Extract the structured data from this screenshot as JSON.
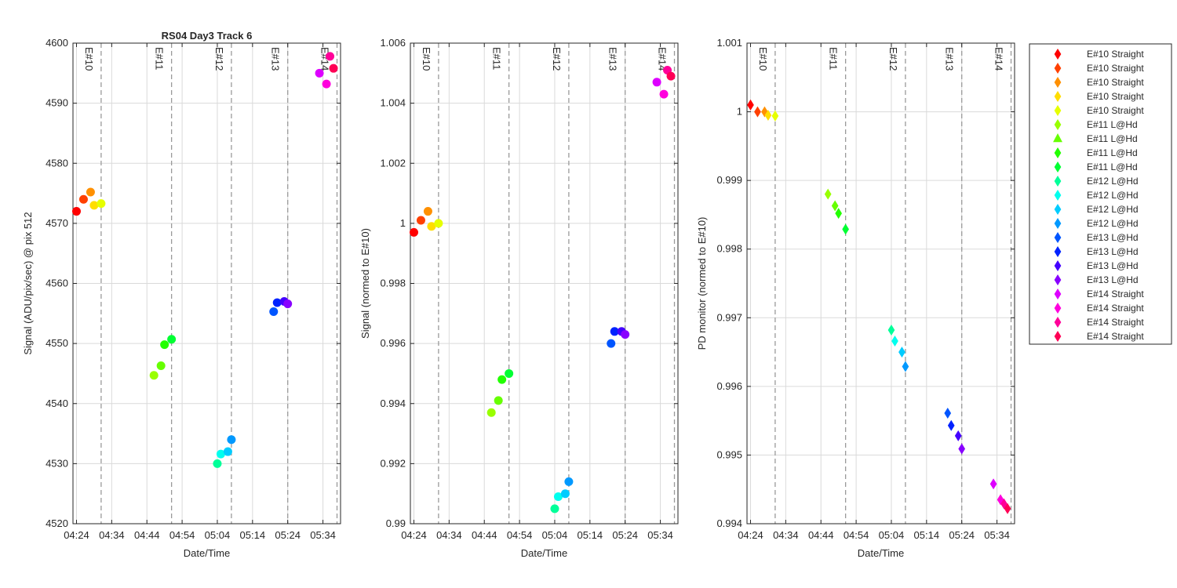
{
  "chart_data": [
    {
      "type": "scatter",
      "title": "RS04 Day3 Track 6",
      "xlabel": "Date/Time",
      "ylabel": "Signal (ADU/pix/sec) @ pix 512",
      "ylim": [
        4520,
        4600
      ],
      "yticks": [
        4520,
        4530,
        4540,
        4550,
        4560,
        4570,
        4580,
        4590,
        4600
      ],
      "ytick_labels": [
        "4520",
        "4530",
        "4540",
        "4550",
        "4560",
        "4570",
        "4580",
        "4590",
        "4600"
      ],
      "xlim": [
        "04:23",
        "05:39"
      ],
      "xticks": [
        "04:24",
        "04:34",
        "04:44",
        "04:54",
        "05:04",
        "05:14",
        "05:24",
        "05:34"
      ],
      "grid": true,
      "markers": "circle",
      "event_lines": [
        {
          "label": "E#10",
          "time": "04:31"
        },
        {
          "label": "E#11",
          "time": "04:51"
        },
        {
          "label": "E#12",
          "time": "05:08"
        },
        {
          "label": "E#13",
          "time": "05:24"
        },
        {
          "label": "E#14",
          "time": "05:38"
        }
      ],
      "points": [
        {
          "x": "04:24",
          "y": 4572.0,
          "color": "#ff0000"
        },
        {
          "x": "04:26",
          "y": 4574.0,
          "color": "#ff4000"
        },
        {
          "x": "04:28",
          "y": 4575.2,
          "color": "#ff9000"
        },
        {
          "x": "04:29",
          "y": 4573.0,
          "color": "#ffdd00"
        },
        {
          "x": "04:31",
          "y": 4573.3,
          "color": "#e6ff00"
        },
        {
          "x": "04:46",
          "y": 4544.7,
          "color": "#99ff00"
        },
        {
          "x": "04:48",
          "y": 4546.3,
          "color": "#66ff00"
        },
        {
          "x": "04:49",
          "y": 4549.8,
          "color": "#22ff00"
        },
        {
          "x": "04:51",
          "y": 4550.7,
          "color": "#00ff33"
        },
        {
          "x": "05:04",
          "y": 4530.0,
          "color": "#00ff99"
        },
        {
          "x": "05:05",
          "y": 4531.6,
          "color": "#00ffee"
        },
        {
          "x": "05:07",
          "y": 4532.0,
          "color": "#00ccff"
        },
        {
          "x": "05:08",
          "y": 4534.0,
          "color": "#0099ff"
        },
        {
          "x": "05:20",
          "y": 4555.3,
          "color": "#0055ff"
        },
        {
          "x": "05:21",
          "y": 4556.8,
          "color": "#0022ff"
        },
        {
          "x": "05:23",
          "y": 4557.0,
          "color": "#4400ff"
        },
        {
          "x": "05:24",
          "y": 4556.6,
          "color": "#8800ff"
        },
        {
          "x": "05:33",
          "y": 4595.0,
          "color": "#dd00ff"
        },
        {
          "x": "05:35",
          "y": 4593.2,
          "color": "#ff00dd"
        },
        {
          "x": "05:36",
          "y": 4597.8,
          "color": "#ff0099"
        },
        {
          "x": "05:37",
          "y": 4595.8,
          "color": "#ff0055"
        }
      ]
    },
    {
      "type": "scatter",
      "title": "",
      "xlabel": "Date/Time",
      "ylabel": "Signal (normed to E#10)",
      "ylim": [
        0.99,
        1.006
      ],
      "yticks": [
        0.99,
        0.992,
        0.994,
        0.996,
        0.998,
        1,
        1.002,
        1.004,
        1.006
      ],
      "ytick_labels": [
        "0.99",
        "0.992",
        "0.994",
        "0.996",
        "0.998",
        "1",
        "1.002",
        "1.004",
        "1.006"
      ],
      "xlim": [
        "04:23",
        "05:39"
      ],
      "xticks": [
        "04:24",
        "04:34",
        "04:44",
        "04:54",
        "05:04",
        "05:14",
        "05:24",
        "05:34"
      ],
      "grid": true,
      "markers": "circle",
      "event_lines": [
        {
          "label": "E#10",
          "time": "04:31"
        },
        {
          "label": "E#11",
          "time": "04:51"
        },
        {
          "label": "E#12",
          "time": "05:08"
        },
        {
          "label": "E#13",
          "time": "05:24"
        },
        {
          "label": "E#14",
          "time": "05:38"
        }
      ],
      "points": [
        {
          "x": "04:24",
          "y": 0.9997,
          "color": "#ff0000"
        },
        {
          "x": "04:26",
          "y": 1.0001,
          "color": "#ff4000"
        },
        {
          "x": "04:28",
          "y": 1.0004,
          "color": "#ff9000"
        },
        {
          "x": "04:29",
          "y": 0.9999,
          "color": "#ffdd00"
        },
        {
          "x": "04:31",
          "y": 1.0,
          "color": "#e6ff00"
        },
        {
          "x": "04:46",
          "y": 0.9937,
          "color": "#99ff00"
        },
        {
          "x": "04:48",
          "y": 0.9941,
          "color": "#66ff00"
        },
        {
          "x": "04:49",
          "y": 0.9948,
          "color": "#22ff00"
        },
        {
          "x": "04:51",
          "y": 0.995,
          "color": "#00ff33"
        },
        {
          "x": "05:04",
          "y": 0.9905,
          "color": "#00ff99"
        },
        {
          "x": "05:05",
          "y": 0.9909,
          "color": "#00ffee"
        },
        {
          "x": "05:07",
          "y": 0.991,
          "color": "#00ccff"
        },
        {
          "x": "05:08",
          "y": 0.9914,
          "color": "#0099ff"
        },
        {
          "x": "05:20",
          "y": 0.996,
          "color": "#0055ff"
        },
        {
          "x": "05:21",
          "y": 0.9964,
          "color": "#0022ff"
        },
        {
          "x": "05:23",
          "y": 0.9964,
          "color": "#4400ff"
        },
        {
          "x": "05:24",
          "y": 0.9963,
          "color": "#8800ff"
        },
        {
          "x": "05:33",
          "y": 1.0047,
          "color": "#dd00ff"
        },
        {
          "x": "05:35",
          "y": 1.0043,
          "color": "#ff00dd"
        },
        {
          "x": "05:36",
          "y": 1.0051,
          "color": "#ff0099"
        },
        {
          "x": "05:37",
          "y": 1.0049,
          "color": "#ff0055"
        }
      ]
    },
    {
      "type": "scatter",
      "title": "",
      "xlabel": "Date/Time",
      "ylabel": "PD monitor (normed to E#10)",
      "ylim": [
        0.994,
        1.001
      ],
      "yticks": [
        0.994,
        0.995,
        0.996,
        0.997,
        0.998,
        0.999,
        1,
        1.001
      ],
      "ytick_labels": [
        "0.994",
        "0.995",
        "0.996",
        "0.997",
        "0.998",
        "0.999",
        "1",
        "1.001"
      ],
      "xlim": [
        "04:23",
        "05:39"
      ],
      "xticks": [
        "04:24",
        "04:34",
        "04:44",
        "04:54",
        "05:04",
        "05:14",
        "05:24",
        "05:34"
      ],
      "grid": true,
      "markers": "diamond",
      "event_lines": [
        {
          "label": "E#10",
          "time": "04:31"
        },
        {
          "label": "E#11",
          "time": "04:51"
        },
        {
          "label": "E#12",
          "time": "05:08"
        },
        {
          "label": "E#13",
          "time": "05:24"
        },
        {
          "label": "E#14",
          "time": "05:38"
        }
      ],
      "points": [
        {
          "x": "04:24",
          "y": 1.0001,
          "color": "#ff0000"
        },
        {
          "x": "04:26",
          "y": 1.0,
          "color": "#ff4000"
        },
        {
          "x": "04:28",
          "y": 1.0,
          "color": "#ff9000"
        },
        {
          "x": "04:29",
          "y": 0.99995,
          "color": "#ffdd00"
        },
        {
          "x": "04:31",
          "y": 0.99994,
          "color": "#e6ff00"
        },
        {
          "x": "04:46",
          "y": 0.9988,
          "color": "#99ff00"
        },
        {
          "x": "04:48",
          "y": 0.99863,
          "color": "#66ff00"
        },
        {
          "x": "04:49",
          "y": 0.99852,
          "color": "#22ff00"
        },
        {
          "x": "04:51",
          "y": 0.99829,
          "color": "#00ff33"
        },
        {
          "x": "05:04",
          "y": 0.99682,
          "color": "#00ff99"
        },
        {
          "x": "05:05",
          "y": 0.99666,
          "color": "#00ffee"
        },
        {
          "x": "05:07",
          "y": 0.9965,
          "color": "#00ccff"
        },
        {
          "x": "05:08",
          "y": 0.99629,
          "color": "#0099ff"
        },
        {
          "x": "05:20",
          "y": 0.99561,
          "color": "#0055ff"
        },
        {
          "x": "05:21",
          "y": 0.99543,
          "color": "#0022ff"
        },
        {
          "x": "05:23",
          "y": 0.99528,
          "color": "#4400ff"
        },
        {
          "x": "05:24",
          "y": 0.99509,
          "color": "#8800ff"
        },
        {
          "x": "05:33",
          "y": 0.99458,
          "color": "#dd00ff"
        },
        {
          "x": "05:35",
          "y": 0.99435,
          "color": "#ff00dd"
        },
        {
          "x": "05:36",
          "y": 0.99429,
          "color": "#ff0099"
        },
        {
          "x": "05:37",
          "y": 0.99422,
          "color": "#ff0055"
        }
      ]
    }
  ],
  "legend": {
    "placement": "right",
    "entries": [
      {
        "label": "E#10 Straight",
        "color": "#ff0000",
        "marker": "diamond"
      },
      {
        "label": "E#10 Straight",
        "color": "#ff4000",
        "marker": "diamond"
      },
      {
        "label": "E#10 Straight",
        "color": "#ff9000",
        "marker": "diamond"
      },
      {
        "label": "E#10 Straight",
        "color": "#ffdd00",
        "marker": "diamond"
      },
      {
        "label": "E#10 Straight",
        "color": "#e6ff00",
        "marker": "diamond"
      },
      {
        "label": "E#11 L@Hd",
        "color": "#99ff00",
        "marker": "diamond"
      },
      {
        "label": "E#11 L@Hd",
        "color": "#66ff00",
        "marker": "triangle"
      },
      {
        "label": "E#11 L@Hd",
        "color": "#22ff00",
        "marker": "diamond"
      },
      {
        "label": "E#11 L@Hd",
        "color": "#00ff33",
        "marker": "diamond"
      },
      {
        "label": "E#12 L@Hd",
        "color": "#00ff99",
        "marker": "diamond"
      },
      {
        "label": "E#12 L@Hd",
        "color": "#00ffee",
        "marker": "diamond"
      },
      {
        "label": "E#12 L@Hd",
        "color": "#00ccff",
        "marker": "diamond"
      },
      {
        "label": "E#12 L@Hd",
        "color": "#0099ff",
        "marker": "diamond"
      },
      {
        "label": "E#13 L@Hd",
        "color": "#0055ff",
        "marker": "diamond"
      },
      {
        "label": "E#13 L@Hd",
        "color": "#0022ff",
        "marker": "diamond"
      },
      {
        "label": "E#13 L@Hd",
        "color": "#4400ff",
        "marker": "diamond"
      },
      {
        "label": "E#13 L@Hd",
        "color": "#8800ff",
        "marker": "diamond"
      },
      {
        "label": "E#14 Straight",
        "color": "#dd00ff",
        "marker": "diamond"
      },
      {
        "label": "E#14 Straight",
        "color": "#ff00dd",
        "marker": "diamond"
      },
      {
        "label": "E#14 Straight",
        "color": "#ff0099",
        "marker": "diamond"
      },
      {
        "label": "E#14 Straight",
        "color": "#ff0055",
        "marker": "diamond"
      }
    ]
  }
}
